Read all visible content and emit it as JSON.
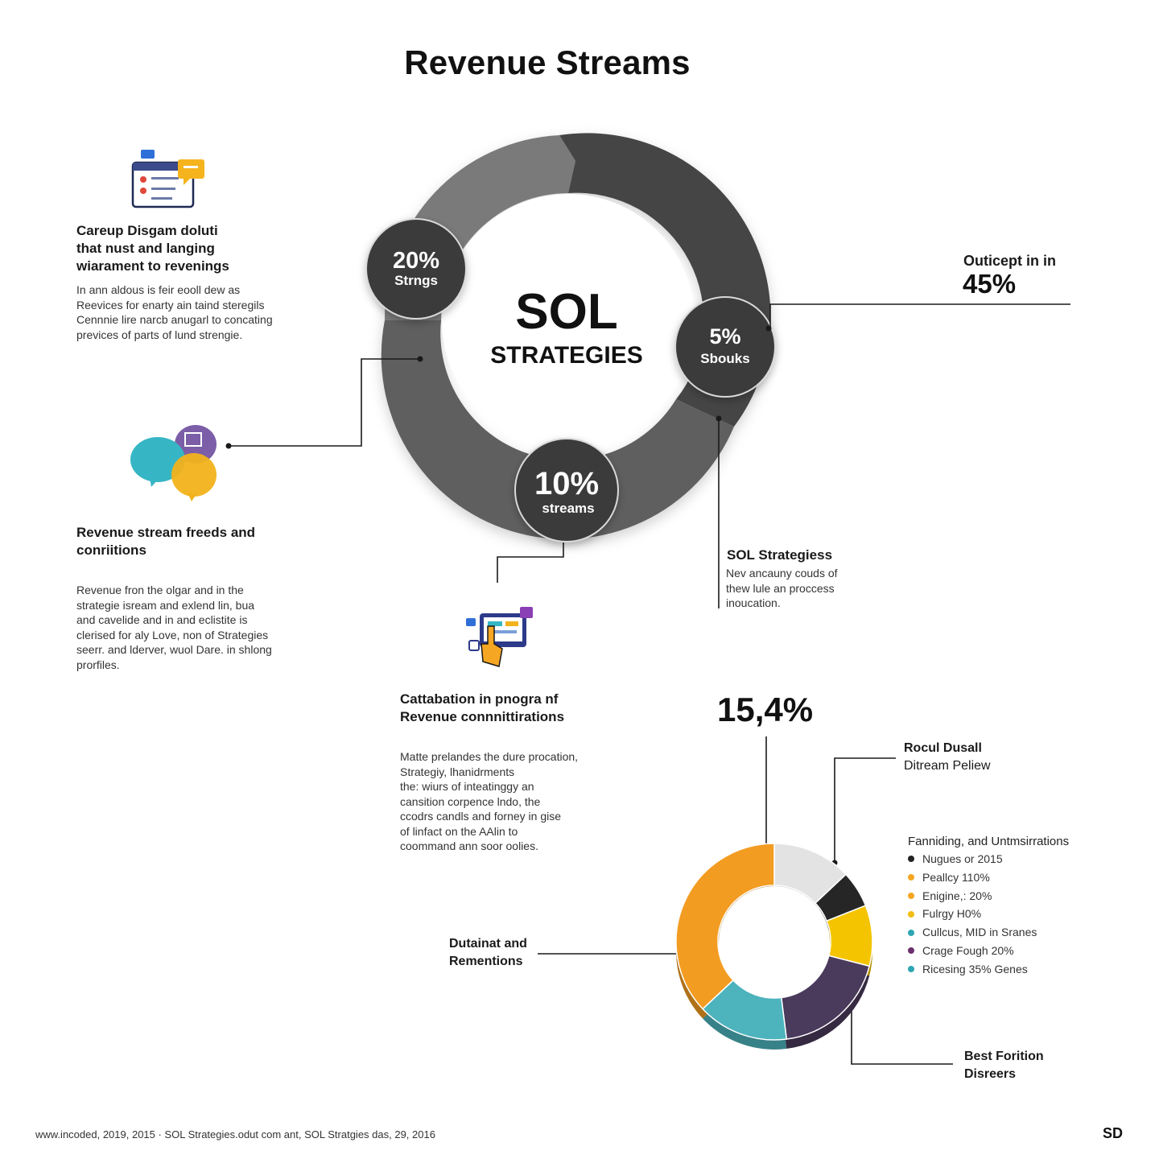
{
  "title": "Revenue Streams",
  "center": {
    "line1": "SOL",
    "line2": "STRATEGIES"
  },
  "badges": [
    {
      "pct": "20%",
      "label": "Strngs"
    },
    {
      "pct": "5%",
      "label": "Sbouks"
    },
    {
      "pct": "10%",
      "label": "streams"
    }
  ],
  "block1": {
    "heading": [
      "Careup Disgam doluti",
      "that nust and langing",
      "wiarament to revenings"
    ],
    "body": [
      "In ann aldous is feir eooll dew as",
      "Reevices for enarty ain taind steregils",
      "Cennnie lire narcb anugarl to concating",
      "previces of parts of lund strengie."
    ]
  },
  "block2": {
    "heading": [
      "Revenue stream freeds and",
      "conriitions"
    ],
    "body": [
      "Revenue fron the olgar and in the",
      "strategie isream and exlend lin, bua",
      "and cavelide and in and eclistite is",
      "clerised for aly Love, non of Strategies",
      "seerr. and lderver, wuol Dare. in shlong",
      "prorfiles."
    ]
  },
  "block3": {
    "heading": [
      "Cattabation in pnogra nf",
      "Revenue connnittirations"
    ],
    "body": [
      "Matte prelandes the dure procation,",
      "Strategiy, lhanidrments",
      "the: wiurs of inteatinggy an",
      "cansition corpence lndo, the",
      "ccodrs candls and forney in gise",
      "of linfact on the AAlin to",
      "coommand ann soor oolies."
    ]
  },
  "callout_right": {
    "label": "Outicept in in",
    "value": "45%"
  },
  "sol_block": {
    "heading": "SOL Strategiess",
    "body": [
      "Nev ancauny couds of",
      "thew lule an proccess",
      "inoucation."
    ]
  },
  "big_number": "15,4%",
  "label_rocul": [
    "Rocul Dusall",
    "Ditream Peliew"
  ],
  "label_dutaint": [
    "Dutainat and",
    "Rementions"
  ],
  "label_best": [
    "Best Forition",
    "Disreers"
  ],
  "legend": {
    "title": "Fanniding, and Untmsirrations",
    "items": [
      {
        "label": "Nugues or 2015",
        "color": "#222222"
      },
      {
        "label": "Peallcy 110%",
        "color": "#f6a623"
      },
      {
        "label": "Enigine,: 20%",
        "color": "#f6a623"
      },
      {
        "label": "Fulrgy H0%",
        "color": "#f2bd12"
      },
      {
        "label": "Cullcus, MID in Sranes",
        "color": "#2ea6b1"
      },
      {
        "label": "Crage Fough 20%",
        "color": "#6b2f6e"
      },
      {
        "label": "Ricesing 35% Genes",
        "color": "#2ea6b1"
      }
    ]
  },
  "chart_data": {
    "type": "pie",
    "variant": "donut",
    "values": [
      13,
      6,
      10,
      19,
      15,
      37
    ],
    "colors": [
      "#e3e3e3",
      "#262626",
      "#f5c400",
      "#4a3a5c",
      "#4db3bd",
      "#f39c22"
    ]
  },
  "footer": {
    "text": "www.incoded, 2019, 2015 · SOL Strategies.odut com ant, SOL Stratgies das, 29, 2016",
    "mark": "SD"
  }
}
